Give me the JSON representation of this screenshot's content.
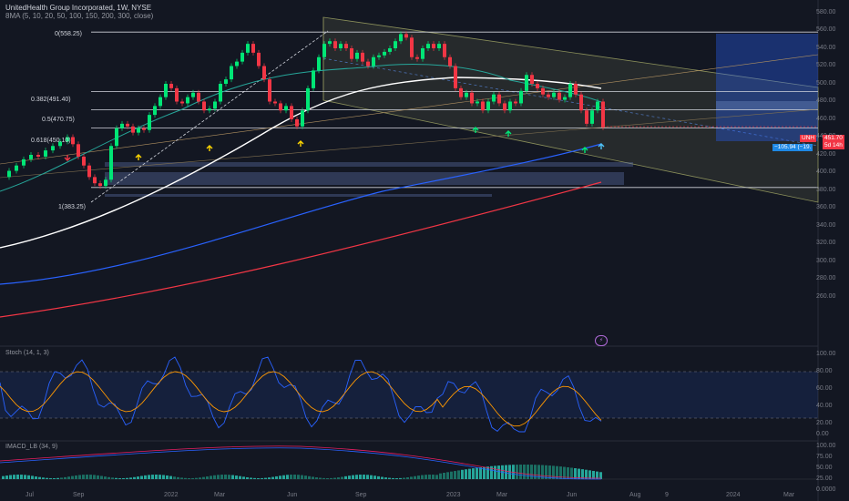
{
  "header": {
    "title": "UnitedHealth Group Incorporated, 1W, NYSE",
    "ma_label": "8MA (5, 10, 20, 50, 100, 150, 200, 300, close)"
  },
  "fib_levels": [
    {
      "label": "0(558.25)",
      "value": 558.25
    },
    {
      "label": "0.382(491.40)",
      "value": 491.4
    },
    {
      "label": "0.5(470.75)",
      "value": 470.75
    },
    {
      "label": "0.618(450.10)",
      "value": 450.1
    },
    {
      "label": "1(383.25)",
      "value": 383.25
    }
  ],
  "price_axis": [
    "580.00",
    "560.00",
    "540.00",
    "520.00",
    "500.00",
    "480.00",
    "460.00",
    "440.00",
    "420.00",
    "400.00",
    "380.00",
    "360.00",
    "340.00",
    "320.00",
    "300.00",
    "280.00",
    "260.00"
  ],
  "price_tag": {
    "symbol": "UNH",
    "price": "451.70",
    "countdown": "5d 14h"
  },
  "measure_tag": "−105.94 (−19.",
  "stoch": {
    "label": "Stoch (14, 1, 3)",
    "axis": [
      "100.00",
      "80.00",
      "60.00",
      "40.00",
      "20.00",
      "0.00"
    ],
    "upper": 80,
    "lower": 20
  },
  "macd": {
    "label": "IMACD_LB (34, 9)",
    "axis": [
      "100.00",
      "75.00",
      "50.00",
      "25.00",
      "0.0000"
    ]
  },
  "time_axis": [
    {
      "label": "Jul"
    },
    {
      "label": "Sep"
    },
    {
      "label": "2022"
    },
    {
      "label": "Mar"
    },
    {
      "label": "Jun"
    },
    {
      "label": "Sep"
    },
    {
      "label": "2023"
    },
    {
      "label": "Mar"
    },
    {
      "label": "Jun"
    },
    {
      "label": "Aug"
    },
    {
      "label": "9"
    },
    {
      "label": "2024"
    },
    {
      "label": "Mar"
    }
  ],
  "logo_glyph": "⚡",
  "colors": {
    "up": "#00e676",
    "down": "#f23645",
    "ma_white": "#ffffff",
    "ma_blue": "#2962ff",
    "ma_red": "#f23645",
    "ma_teal": "#26a69a",
    "stoch_k": "#2962ff",
    "stoch_d": "#ff9800"
  }
}
